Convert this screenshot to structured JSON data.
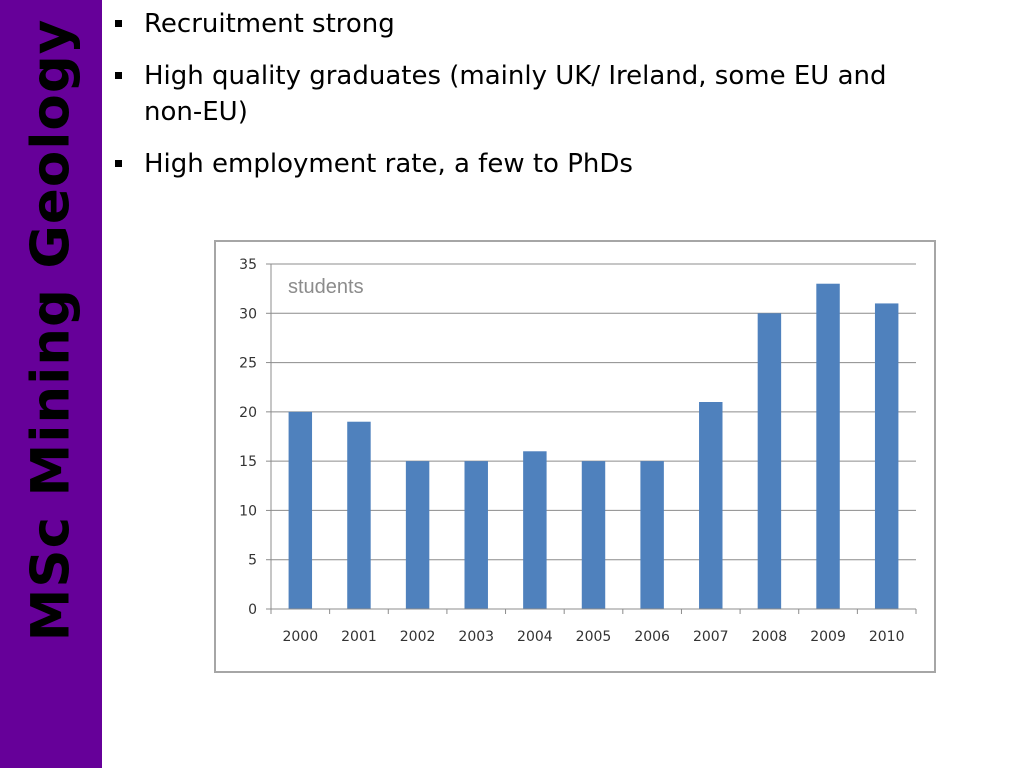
{
  "sidebar": {
    "title": "MSc Mining Geology",
    "background_color": "#660099"
  },
  "bullets": [
    "Recruitment strong",
    "High quality graduates (mainly UK/ Ireland, some EU and non-EU)",
    "High employment rate, a few to PhDs"
  ],
  "chart_data": {
    "type": "bar",
    "title": "",
    "xlabel": "",
    "ylabel": "",
    "annotation": "students",
    "categories": [
      "2000",
      "2001",
      "2002",
      "2003",
      "2004",
      "2005",
      "2006",
      "2007",
      "2008",
      "2009",
      "2010"
    ],
    "values": [
      20,
      19,
      15,
      15,
      16,
      15,
      15,
      21,
      30,
      33,
      31
    ],
    "ylim": [
      0,
      35
    ],
    "yticks": [
      0,
      5,
      10,
      15,
      20,
      25,
      30,
      35
    ],
    "grid": true,
    "legend": "none",
    "bar_color": "#4f81bd"
  }
}
